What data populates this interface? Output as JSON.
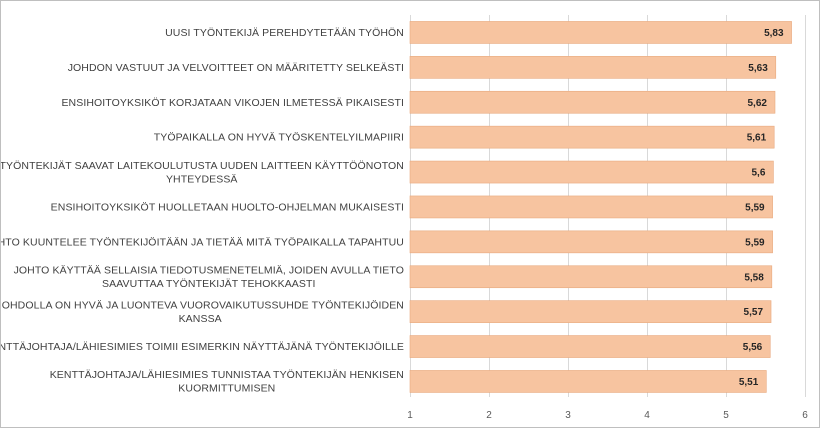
{
  "chart_data": {
    "type": "bar",
    "orientation": "horizontal",
    "title": "",
    "xlabel": "",
    "ylabel": "",
    "xlim": [
      1,
      6
    ],
    "xticks": [
      1,
      2,
      3,
      4,
      5,
      6
    ],
    "grid": true,
    "legend": "none",
    "bar_color": "#F7C4A0",
    "bar_edge_color": "#E8A97E",
    "categories": [
      [
        "UUSI TYÖNTEKIJÄ PEREHDYTETÄÄN TYÖHÖN"
      ],
      [
        "JOHDON VASTUUT JA VELVOITTEET ON MÄÄRITETTY SELKEÄSTI"
      ],
      [
        "ENSIHOITOYKSIKÖT KORJATAAN VIKOJEN ILMETESSÄ PIKAISESTI"
      ],
      [
        "TYÖPAIKALLA ON HYVÄ TYÖSKENTELYILMAPIIRI"
      ],
      [
        "TYÖNTEKIJÄT SAAVAT LAITEKOULUTUSTA UUDEN LAITTEEN KÄYTTÖÖNOTON",
        "YHTEYDESSÄ"
      ],
      [
        "ENSIHOITOYKSIKÖT HUOLLETAAN HUOLTO-OHJELMAN MUKAISESTI"
      ],
      [
        "JOHTO KUUNTELEE TYÖNTEKIJÖITÄÄN JA TIETÄÄ MITÄ TYÖPAIKALLA TAPAHTUU"
      ],
      [
        "JOHTO KÄYTTÄÄ SELLAISIA TIEDOTUSMENETELMIÄ, JOIDEN AVULLA TIETO",
        "SAAVUTTAA TYÖNTEKIJÄT TEHOKKAASTI"
      ],
      [
        "JOHDOLLA ON HYVÄ JA LUONTEVA VUOROVAIKUTUSSUHDE TYÖNTEKIJÖIDEN",
        "KANSSA"
      ],
      [
        "KENTTÄJOHTAJA/LÄHIESIMIES TOIMII ESIMERKIN NÄYTTÄJÄNÄ TYÖNTEKIJÖILLE"
      ],
      [
        "KENTTÄJOHTAJA/LÄHIESIMIES TUNNISTAA TYÖNTEKIJÄN HENKISEN",
        "KUORMITTUMISEN"
      ]
    ],
    "values": [
      5.83,
      5.63,
      5.62,
      5.61,
      5.6,
      5.59,
      5.59,
      5.58,
      5.57,
      5.56,
      5.51
    ],
    "value_labels": [
      "5,83",
      "5,63",
      "5,62",
      "5,61",
      "5,6",
      "5,59",
      "5,59",
      "5,58",
      "5,57",
      "5,56",
      "5,51"
    ],
    "tick_labels": [
      "1",
      "2",
      "3",
      "4",
      "5",
      "6"
    ]
  }
}
